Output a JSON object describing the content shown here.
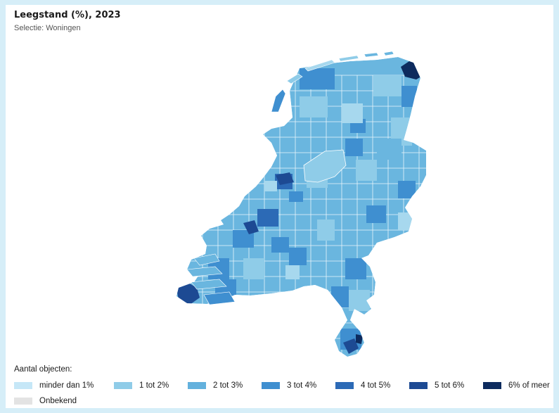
{
  "header": {
    "title": "Leegstand (%), 2023",
    "subtitle": "Selectie: Woningen"
  },
  "map": {
    "region": "Nederland",
    "levels": [
      "#a7d8ee",
      "#8fcce8",
      "#6ab6df",
      "#3f8fd0",
      "#2c6ab6",
      "#1d4a93",
      "#0d2b5e"
    ]
  },
  "legend": {
    "title": "Aantal objecten:",
    "items": [
      {
        "label": "minder dan 1%",
        "color": "#c6e7f7"
      },
      {
        "label": "1 tot 2%",
        "color": "#8fcce8"
      },
      {
        "label": "2 tot 3%",
        "color": "#63b1dd"
      },
      {
        "label": "3 tot 4%",
        "color": "#3f8fd0"
      },
      {
        "label": "4 tot 5%",
        "color": "#2c6ab6"
      },
      {
        "label": "5 tot 6%",
        "color": "#1d4a93"
      },
      {
        "label": "6% of meer",
        "color": "#0d2b5e"
      },
      {
        "label": "Onbekend",
        "color": "#e3e3e3"
      }
    ]
  }
}
